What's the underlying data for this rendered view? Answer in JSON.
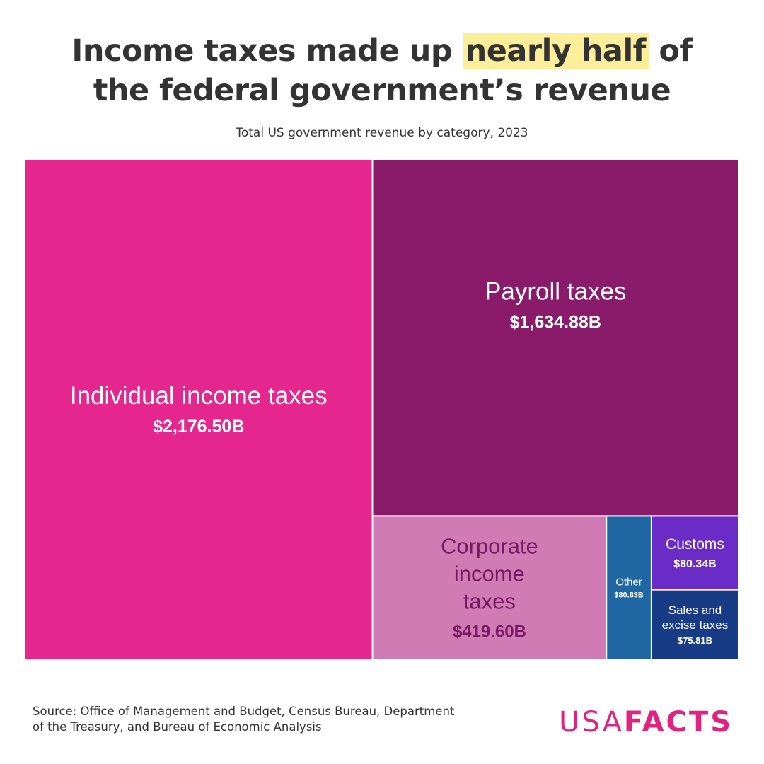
{
  "header": {
    "title_pre": "Income taxes made up ",
    "title_highlight": "nearly half",
    "title_post1": " of",
    "title_line2": "the federal government’s revenue",
    "subtitle": "Total US government revenue by category, 2023"
  },
  "chart_data": {
    "type": "treemap",
    "unit": "B",
    "items": [
      {
        "id": "individual",
        "lines": [
          "Individual income taxes"
        ],
        "value": 2176.5,
        "value_label": "$2,176.50B",
        "color": "#e4268e",
        "text_color": "#ffffff"
      },
      {
        "id": "payroll",
        "lines": [
          "Payroll taxes"
        ],
        "value": 1634.88,
        "value_label": "$1,634.88B",
        "color": "#8a1b6b",
        "text_color": "#ffffff"
      },
      {
        "id": "corporate",
        "lines": [
          "Corporate",
          "income",
          "taxes"
        ],
        "value": 419.6,
        "value_label": "$419.60B",
        "color": "#d17bb4",
        "text_color": "#7a1868"
      },
      {
        "id": "other",
        "lines": [
          "Other"
        ],
        "value": 80.83,
        "value_label": "$80.83B",
        "color": "#1f67a3",
        "text_color": "#ffffff"
      },
      {
        "id": "customs",
        "lines": [
          "Customs"
        ],
        "value": 80.34,
        "value_label": "$80.34B",
        "color": "#6a2bc7",
        "text_color": "#ffffff"
      },
      {
        "id": "sales",
        "lines": [
          "Sales and",
          "excise taxes"
        ],
        "value": 75.81,
        "value_label": "$75.81B",
        "color": "#173b84",
        "text_color": "#ffffff"
      }
    ]
  },
  "footer": {
    "source_line1": "Source: Office of Management and Budget, Census Bureau, Department",
    "source_line2": "of the Treasury, and Bureau of Economic Analysis",
    "logo_light": "USA",
    "logo_bold": "FACTS"
  }
}
